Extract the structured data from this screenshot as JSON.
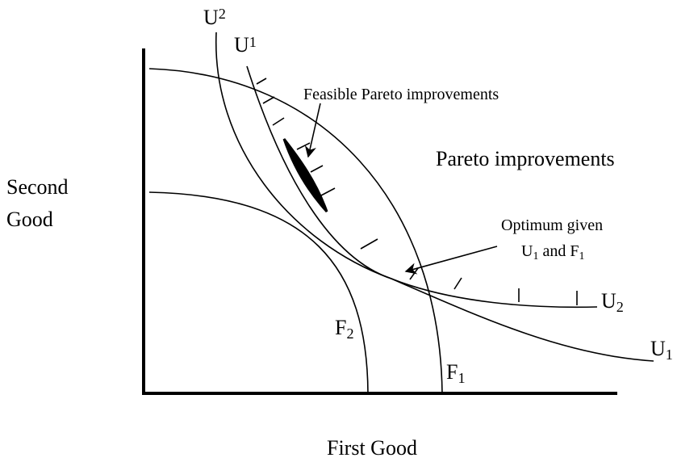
{
  "axes": {
    "y_label": [
      "Second",
      "Good"
    ],
    "x_label": "First Good"
  },
  "annotations": {
    "feasible": "Feasible Pareto improvements",
    "pareto": "Pareto improvements",
    "optimum": {
      "line1": "Optimum given",
      "line2": [
        {
          "text": "U",
          "sub": "1"
        },
        {
          "text": " and F",
          "sub": "1"
        }
      ]
    }
  },
  "curve_labels": {
    "u2_top": {
      "text": "U",
      "sub": "2"
    },
    "u1_top": {
      "text": "U",
      "sub": "1"
    },
    "u2_right": {
      "text": "U",
      "sub": "2"
    },
    "u1_right": {
      "text": "U",
      "sub": "1"
    },
    "f2": {
      "text": "F",
      "sub": "2"
    },
    "f1": {
      "text": "F",
      "sub": "1"
    }
  }
}
